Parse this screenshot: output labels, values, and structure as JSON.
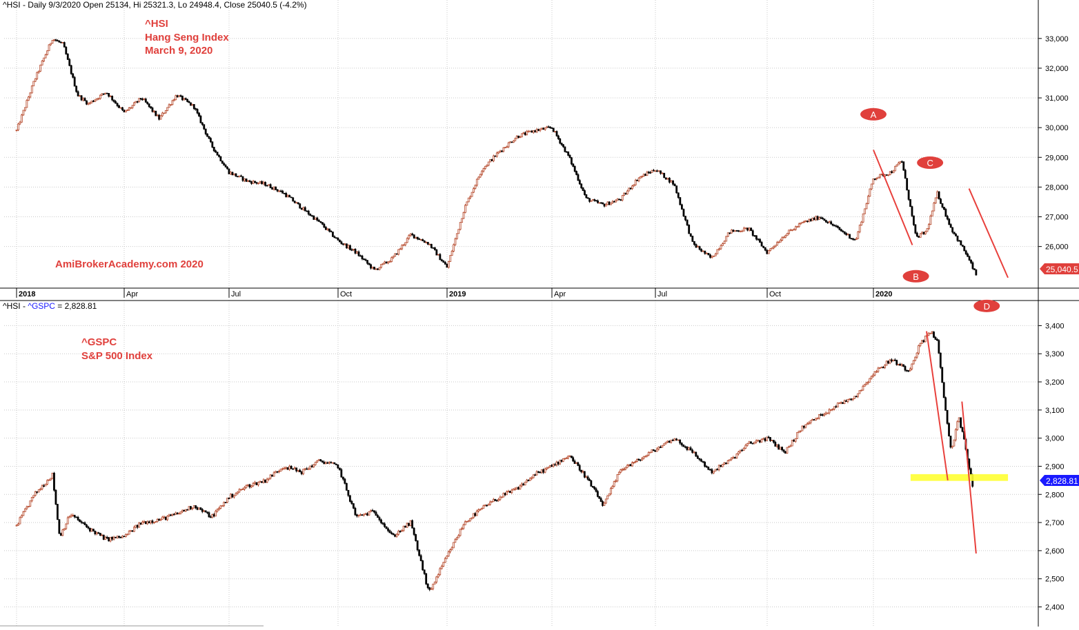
{
  "colors": {
    "up_candle": "#b5482a",
    "down_candle": "#000000",
    "annotation_red": "#e0403c",
    "trend_line": "#e8403c",
    "support_band": "#ffff33",
    "grid": "#c8c8c8",
    "gspc_badge": "#1a1aff",
    "hsi_badge": "#e0403c"
  },
  "x_axis": {
    "tick_labels": [
      {
        "label": "2018",
        "month": 0,
        "bold": true
      },
      {
        "label": "Apr",
        "month": 3,
        "bold": false
      },
      {
        "label": "Jul",
        "month": 6,
        "bold": false
      },
      {
        "label": "Oct",
        "month": 9,
        "bold": false
      },
      {
        "label": "2019",
        "month": 12,
        "bold": true
      },
      {
        "label": "Apr",
        "month": 15,
        "bold": false
      },
      {
        "label": "Jul",
        "month": 18,
        "bold": false
      },
      {
        "label": "Oct",
        "month": 21,
        "bold": false
      },
      {
        "label": "2020",
        "month": 24,
        "bold": true
      }
    ]
  },
  "hsi_panel": {
    "header": "^HSI - Daily 9/3/2020 Open 25134, Hi 25321.3, Lo 24948.4, Close 25040.5 (-4.2%)",
    "annotation_lines": [
      "^HSI",
      "Hang Seng Index",
      "March 9, 2020"
    ],
    "watermark": "AmiBrokerAcademy.com   2020",
    "last_price_badge": "25,040.5",
    "wave_labels": [
      "A",
      "B",
      "C",
      "D"
    ]
  },
  "gspc_panel": {
    "header_prefix": "^HSI - ",
    "header_symbol": "^GSPC",
    "header_suffix": " = 2,828.81",
    "annotation_lines": [
      "^GSPC",
      "S&P 500 Index"
    ],
    "last_price_badge": "2,828.81"
  },
  "chart_data": [
    {
      "type": "line",
      "title": "^HSI - Hang Seng Index",
      "y_axis_side": "right",
      "ylim": [
        24600,
        33900
      ],
      "yticks": [
        26000,
        27000,
        28000,
        29000,
        30000,
        31000,
        32000,
        33000
      ],
      "ytick_labels": [
        "26,000",
        "27,000",
        "28,000",
        "29,000",
        "30,000",
        "31,000",
        "32,000",
        "33,000"
      ],
      "grid": true,
      "x_unit": "months since Jan 2018",
      "x": [
        0,
        0.5,
        1,
        1.3,
        1.7,
        2,
        2.5,
        3,
        3.5,
        4,
        4.5,
        5,
        5.5,
        6,
        6.5,
        7,
        7.5,
        8,
        8.5,
        9,
        9.5,
        10,
        10.5,
        11,
        11.5,
        12,
        12.5,
        13,
        13.5,
        14,
        14.5,
        15,
        15.5,
        16,
        16.5,
        17,
        17.5,
        18,
        18.5,
        19,
        19.5,
        20,
        20.5,
        21,
        21.5,
        22,
        22.5,
        23,
        23.5,
        24,
        24.5,
        24.8,
        25.2,
        25.5,
        25.8,
        26.2,
        26.6,
        26.9
      ],
      "values": [
        29900,
        31600,
        33000,
        32800,
        31100,
        30800,
        31200,
        30500,
        31000,
        30300,
        31100,
        30700,
        29400,
        28500,
        28200,
        28100,
        27800,
        27300,
        26800,
        26200,
        25800,
        25200,
        25600,
        26400,
        26100,
        25300,
        27300,
        28600,
        29200,
        29700,
        29900,
        30000,
        29000,
        27600,
        27400,
        27600,
        28300,
        28600,
        28100,
        26100,
        25600,
        26500,
        26600,
        25800,
        26400,
        26800,
        27000,
        26600,
        26200,
        28300,
        28500,
        28900,
        26300,
        26500,
        27800,
        26600,
        25800,
        25040.5
      ],
      "annotations": [
        {
          "label": "A",
          "x": 24,
          "y": 30450
        },
        {
          "label": "B",
          "x": 25.2,
          "y": 25000
        },
        {
          "label": "C",
          "x": 25.6,
          "y": 28820
        },
        {
          "label": "D",
          "x": 27.2,
          "y": 24000
        }
      ],
      "trend_lines": [
        {
          "x": [
            24,
            25.1
          ],
          "y": [
            29250,
            26050
          ]
        },
        {
          "x": [
            26.7,
            27.8
          ],
          "y": [
            27950,
            24950
          ]
        }
      ]
    },
    {
      "type": "line",
      "title": "^GSPC - S&P 500 Index",
      "y_axis_side": "right",
      "ylim": [
        2340,
        3450
      ],
      "yticks": [
        2400,
        2500,
        2600,
        2700,
        2800,
        2900,
        3000,
        3100,
        3200,
        3300,
        3400
      ],
      "ytick_labels": [
        "2,400",
        "2,500",
        "2,600",
        "2,700",
        "2,800",
        "2,900",
        "3,000",
        "3,100",
        "3,200",
        "3,300",
        "3,400"
      ],
      "grid": true,
      "x_unit": "months since Jan 2018",
      "x": [
        0,
        0.5,
        1,
        1.2,
        1.5,
        2,
        2.5,
        3,
        3.5,
        4,
        4.5,
        5,
        5.5,
        6,
        6.5,
        7,
        7.5,
        8,
        8.5,
        9,
        9.5,
        10,
        10.5,
        11,
        11.5,
        12,
        12.5,
        13,
        13.5,
        14,
        14.5,
        15,
        15.5,
        16,
        16.5,
        17,
        17.5,
        18,
        18.5,
        19,
        19.5,
        20,
        20.5,
        21,
        21.5,
        22,
        22.5,
        23,
        23.5,
        24,
        24.5,
        25,
        25.3,
        25.6,
        25.8,
        26,
        26.2,
        26.4,
        26.6,
        26.8
      ],
      "values": [
        2690,
        2800,
        2870,
        2650,
        2730,
        2680,
        2640,
        2650,
        2700,
        2710,
        2730,
        2760,
        2720,
        2790,
        2830,
        2850,
        2900,
        2880,
        2920,
        2900,
        2720,
        2740,
        2650,
        2700,
        2450,
        2580,
        2700,
        2750,
        2790,
        2820,
        2870,
        2900,
        2940,
        2860,
        2760,
        2890,
        2920,
        2960,
        3000,
        2950,
        2880,
        2920,
        2980,
        3000,
        2950,
        3040,
        3080,
        3120,
        3150,
        3230,
        3280,
        3240,
        3330,
        3380,
        3350,
        3130,
        2950,
        3080,
        2970,
        2828.81
      ],
      "trend_lines": [
        {
          "x": [
            25.5,
            26.1
          ],
          "y": [
            3380,
            2850
          ]
        },
        {
          "x": [
            26.5,
            26.9
          ],
          "y": [
            3130,
            2590
          ]
        }
      ],
      "bands": [
        {
          "x": [
            25.05,
            27.8
          ],
          "y": [
            2848,
            2872
          ]
        }
      ]
    }
  ]
}
